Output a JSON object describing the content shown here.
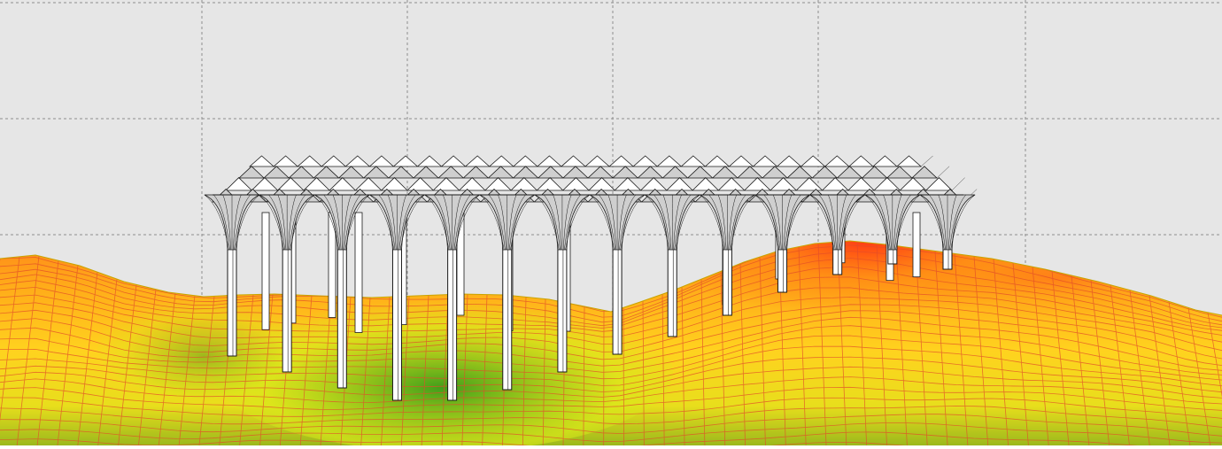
{
  "viewport": {
    "background": "#e6e6e6",
    "grid_color": "#8f8f8f",
    "grid_style": "dashed"
  },
  "terrain": {
    "mesh_color": "#e24d2a",
    "gradient_colors": {
      "low": "#3f9e1a",
      "mid": "#d6e81a",
      "upper": "#ffd21f",
      "high": "#ff8a14",
      "peak": "#ff3b14"
    }
  },
  "structure": {
    "type": "tree-column canopy",
    "stroke_color": "#1a1a1a",
    "fill_color": "#ffffff",
    "shade_color": "#cfcfcf"
  }
}
